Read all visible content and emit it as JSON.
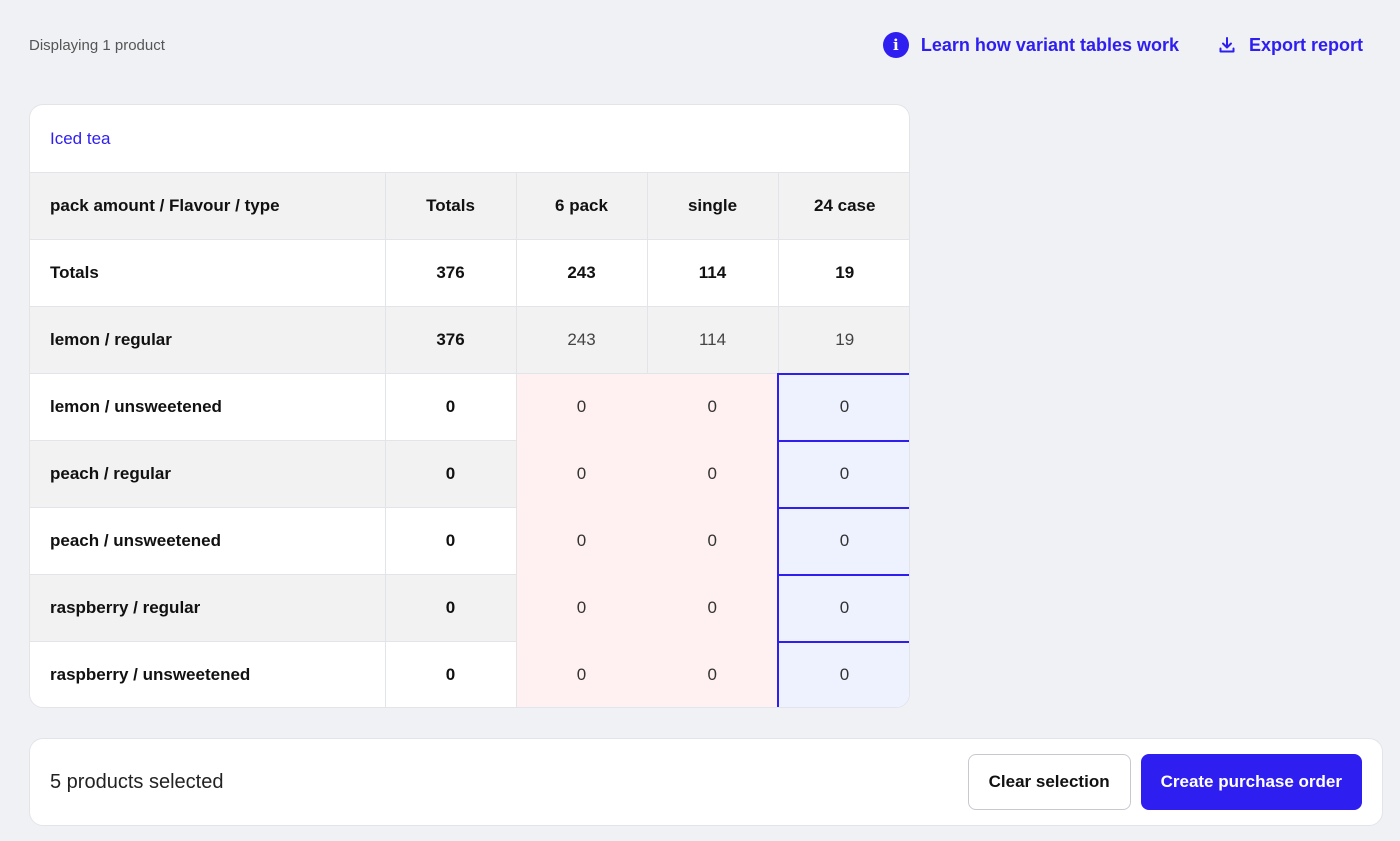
{
  "topbar": {
    "count_text": "Displaying 1 product",
    "learn_link": "Learn how variant tables work",
    "export_link": "Export report",
    "info_icon_glyph": "i"
  },
  "card": {
    "title": "Iced tea",
    "header": {
      "label": "pack amount / Flavour / type",
      "totals": "Totals",
      "col1": "6 pack",
      "col2": "single",
      "col3": "24 case"
    },
    "rows": [
      {
        "label": "Totals",
        "total": "376",
        "c1": "243",
        "c2": "114",
        "c3": "19"
      },
      {
        "label": "lemon / regular",
        "total": "376",
        "c1": "243",
        "c2": "114",
        "c3": "19"
      },
      {
        "label": "lemon / unsweetened",
        "total": "0",
        "c1": "0",
        "c2": "0",
        "c3": "0"
      },
      {
        "label": "peach / regular",
        "total": "0",
        "c1": "0",
        "c2": "0",
        "c3": "0"
      },
      {
        "label": "peach / unsweetened",
        "total": "0",
        "c1": "0",
        "c2": "0",
        "c3": "0"
      },
      {
        "label": "raspberry / regular",
        "total": "0",
        "c1": "0",
        "c2": "0",
        "c3": "0"
      },
      {
        "label": "raspberry / unsweetened",
        "total": "0",
        "c1": "0",
        "c2": "0",
        "c3": "0"
      }
    ]
  },
  "footer": {
    "selected_text": "5 products selected",
    "clear_label": "Clear selection",
    "create_label": "Create purchase order"
  },
  "colors": {
    "accent": "#2e1ef0",
    "pink_cell": "#fff1f1",
    "selected_cell": "#eef2fe"
  }
}
